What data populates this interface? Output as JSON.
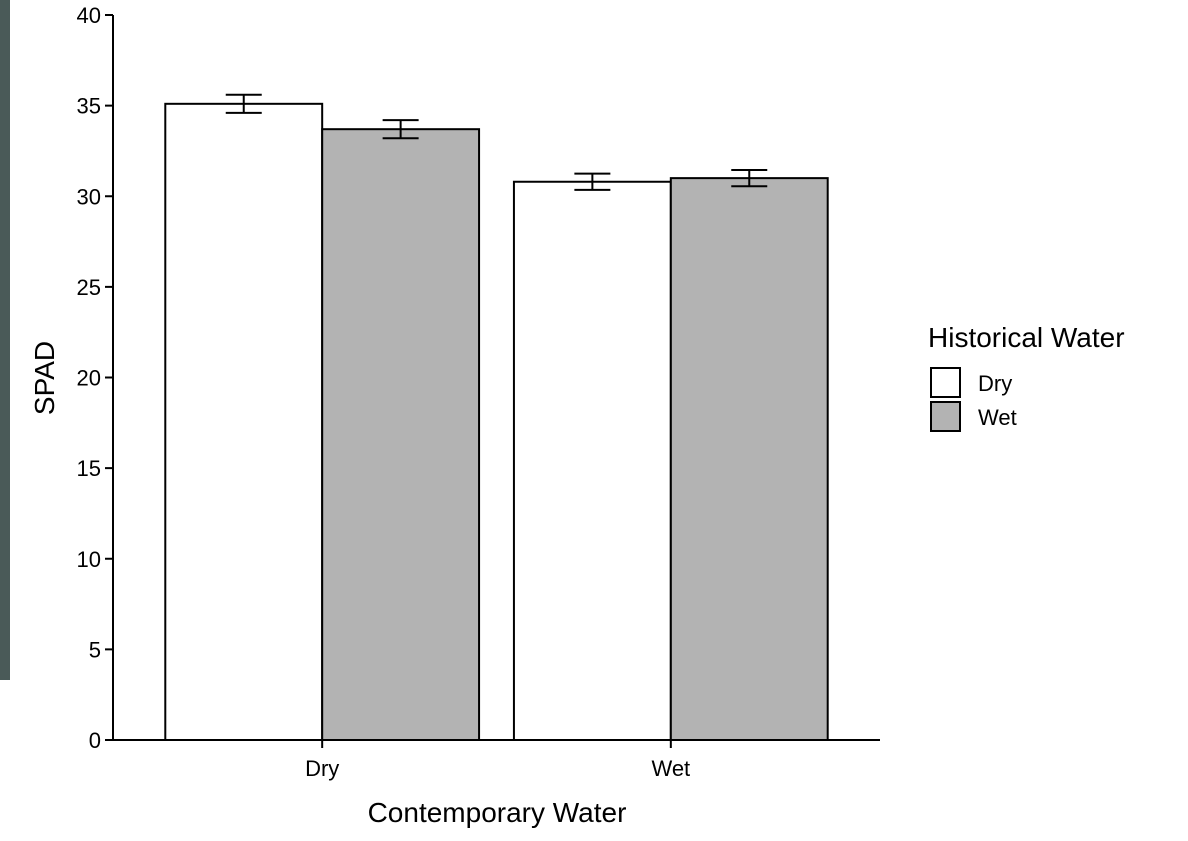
{
  "chart_data": {
    "type": "bar",
    "x_label": "Contemporary Water",
    "y_label": "SPAD",
    "categories": [
      "Dry",
      "Wet"
    ],
    "legend_title": "Historical Water",
    "series": [
      {
        "name": "Dry",
        "color": "#ffffff",
        "values": [
          35.1,
          30.8
        ],
        "errors": [
          0.5,
          0.45
        ]
      },
      {
        "name": "Wet",
        "color": "#b3b3b3",
        "values": [
          33.7,
          31.0
        ],
        "errors": [
          0.5,
          0.45
        ]
      }
    ],
    "ylim": [
      0,
      40
    ],
    "yticks": [
      0,
      5,
      10,
      15,
      20,
      25,
      30,
      35,
      40
    ],
    "grid": false,
    "legend_position": "right"
  }
}
